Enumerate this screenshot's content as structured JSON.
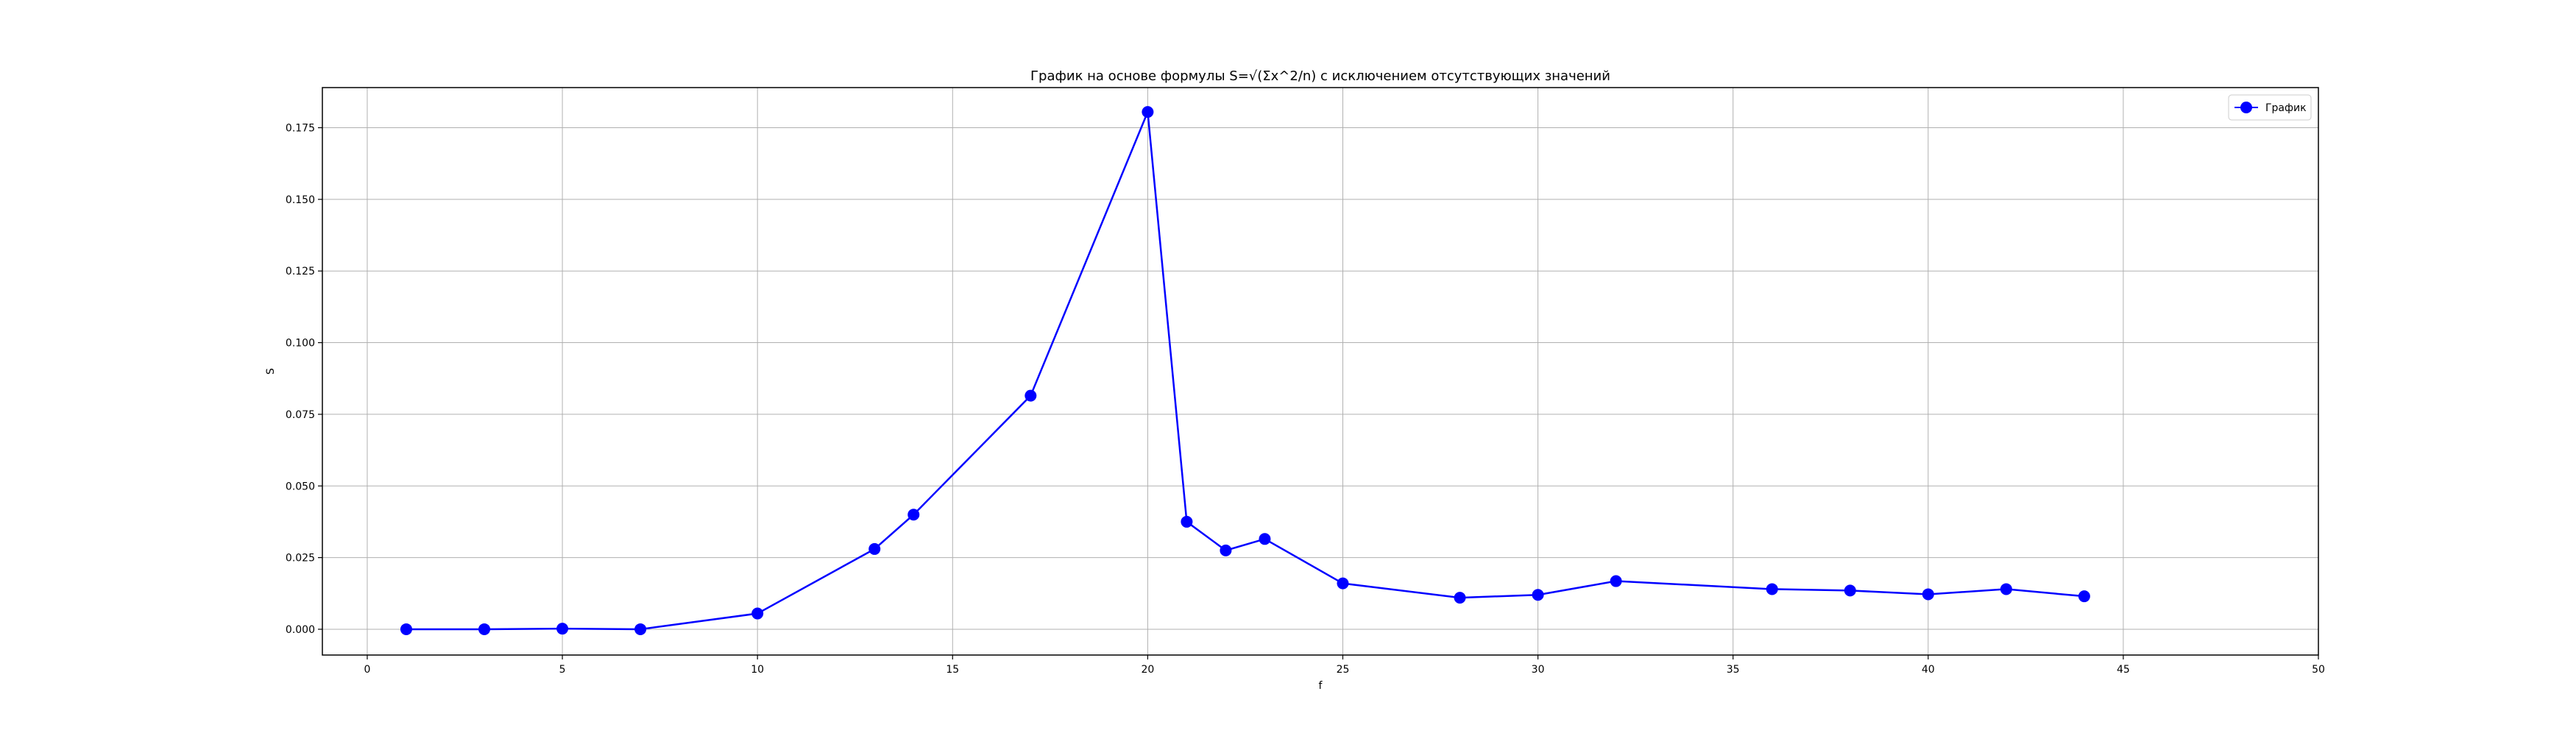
{
  "chart_data": {
    "type": "line",
    "title": "График на основе формулы S=√(Σx^2/n) с исключением отсутствующих значений",
    "xlabel": "f",
    "ylabel": "S",
    "xlim": [
      -1.15,
      50
    ],
    "ylim": [
      -0.009,
      0.189
    ],
    "xticks": [
      0,
      5,
      10,
      15,
      20,
      25,
      30,
      35,
      40,
      45,
      50
    ],
    "yticks": [
      0.0,
      0.025,
      0.05,
      0.075,
      0.1,
      0.125,
      0.15,
      0.175
    ],
    "xtick_labels": [
      "0",
      "5",
      "10",
      "15",
      "20",
      "25",
      "30",
      "35",
      "40",
      "45",
      "50"
    ],
    "ytick_labels": [
      "0.000",
      "0.025",
      "0.050",
      "0.075",
      "0.100",
      "0.125",
      "0.150",
      "0.175"
    ],
    "grid": true,
    "legend_position": "top-right",
    "series": [
      {
        "name": "График",
        "color": "#0000ff",
        "marker": "circle",
        "x": [
          1,
          3,
          5,
          7,
          10,
          13,
          14,
          17,
          20,
          21,
          22,
          23,
          25,
          28,
          30,
          32,
          36,
          38,
          40,
          42,
          44
        ],
        "y": [
          0.0,
          0.0,
          0.0002,
          0.0,
          0.0055,
          0.028,
          0.04,
          0.0815,
          0.1805,
          0.0375,
          0.0275,
          0.0315,
          0.016,
          0.011,
          0.012,
          0.0168,
          0.014,
          0.0135,
          0.0122,
          0.014,
          0.0115
        ]
      }
    ]
  }
}
